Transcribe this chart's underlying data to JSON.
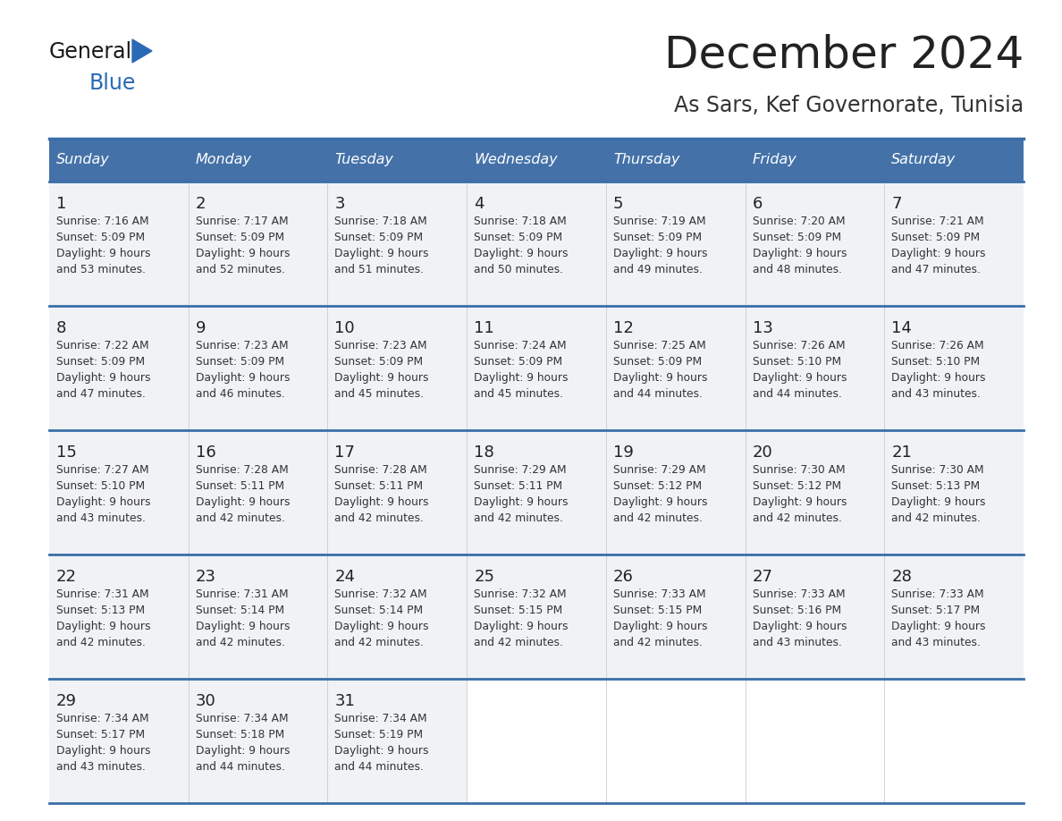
{
  "title": "December 2024",
  "subtitle": "As Sars, Kef Governorate, Tunisia",
  "header_bg_color": "#4472a8",
  "header_text_color": "#ffffff",
  "row_bg": "#f0f2f5",
  "border_color": "#3a6ea8",
  "days_of_week": [
    "Sunday",
    "Monday",
    "Tuesday",
    "Wednesday",
    "Thursday",
    "Friday",
    "Saturday"
  ],
  "calendar_data": [
    [
      "1\nSunrise: 7:16 AM\nSunset: 5:09 PM\nDaylight: 9 hours\nand 53 minutes.",
      "2\nSunrise: 7:17 AM\nSunset: 5:09 PM\nDaylight: 9 hours\nand 52 minutes.",
      "3\nSunrise: 7:18 AM\nSunset: 5:09 PM\nDaylight: 9 hours\nand 51 minutes.",
      "4\nSunrise: 7:18 AM\nSunset: 5:09 PM\nDaylight: 9 hours\nand 50 minutes.",
      "5\nSunrise: 7:19 AM\nSunset: 5:09 PM\nDaylight: 9 hours\nand 49 minutes.",
      "6\nSunrise: 7:20 AM\nSunset: 5:09 PM\nDaylight: 9 hours\nand 48 minutes.",
      "7\nSunrise: 7:21 AM\nSunset: 5:09 PM\nDaylight: 9 hours\nand 47 minutes."
    ],
    [
      "8\nSunrise: 7:22 AM\nSunset: 5:09 PM\nDaylight: 9 hours\nand 47 minutes.",
      "9\nSunrise: 7:23 AM\nSunset: 5:09 PM\nDaylight: 9 hours\nand 46 minutes.",
      "10\nSunrise: 7:23 AM\nSunset: 5:09 PM\nDaylight: 9 hours\nand 45 minutes.",
      "11\nSunrise: 7:24 AM\nSunset: 5:09 PM\nDaylight: 9 hours\nand 45 minutes.",
      "12\nSunrise: 7:25 AM\nSunset: 5:09 PM\nDaylight: 9 hours\nand 44 minutes.",
      "13\nSunrise: 7:26 AM\nSunset: 5:10 PM\nDaylight: 9 hours\nand 44 minutes.",
      "14\nSunrise: 7:26 AM\nSunset: 5:10 PM\nDaylight: 9 hours\nand 43 minutes."
    ],
    [
      "15\nSunrise: 7:27 AM\nSunset: 5:10 PM\nDaylight: 9 hours\nand 43 minutes.",
      "16\nSunrise: 7:28 AM\nSunset: 5:11 PM\nDaylight: 9 hours\nand 42 minutes.",
      "17\nSunrise: 7:28 AM\nSunset: 5:11 PM\nDaylight: 9 hours\nand 42 minutes.",
      "18\nSunrise: 7:29 AM\nSunset: 5:11 PM\nDaylight: 9 hours\nand 42 minutes.",
      "19\nSunrise: 7:29 AM\nSunset: 5:12 PM\nDaylight: 9 hours\nand 42 minutes.",
      "20\nSunrise: 7:30 AM\nSunset: 5:12 PM\nDaylight: 9 hours\nand 42 minutes.",
      "21\nSunrise: 7:30 AM\nSunset: 5:13 PM\nDaylight: 9 hours\nand 42 minutes."
    ],
    [
      "22\nSunrise: 7:31 AM\nSunset: 5:13 PM\nDaylight: 9 hours\nand 42 minutes.",
      "23\nSunrise: 7:31 AM\nSunset: 5:14 PM\nDaylight: 9 hours\nand 42 minutes.",
      "24\nSunrise: 7:32 AM\nSunset: 5:14 PM\nDaylight: 9 hours\nand 42 minutes.",
      "25\nSunrise: 7:32 AM\nSunset: 5:15 PM\nDaylight: 9 hours\nand 42 minutes.",
      "26\nSunrise: 7:33 AM\nSunset: 5:15 PM\nDaylight: 9 hours\nand 42 minutes.",
      "27\nSunrise: 7:33 AM\nSunset: 5:16 PM\nDaylight: 9 hours\nand 43 minutes.",
      "28\nSunrise: 7:33 AM\nSunset: 5:17 PM\nDaylight: 9 hours\nand 43 minutes."
    ],
    [
      "29\nSunrise: 7:34 AM\nSunset: 5:17 PM\nDaylight: 9 hours\nand 43 minutes.",
      "30\nSunrise: 7:34 AM\nSunset: 5:18 PM\nDaylight: 9 hours\nand 44 minutes.",
      "31\nSunrise: 7:34 AM\nSunset: 5:19 PM\nDaylight: 9 hours\nand 44 minutes.",
      "",
      "",
      "",
      ""
    ]
  ],
  "logo_color_general": "#1a1a1a",
  "logo_color_blue": "#2a6ab5",
  "logo_triangle_color": "#2a6ab5",
  "title_color": "#222222",
  "subtitle_color": "#333333"
}
